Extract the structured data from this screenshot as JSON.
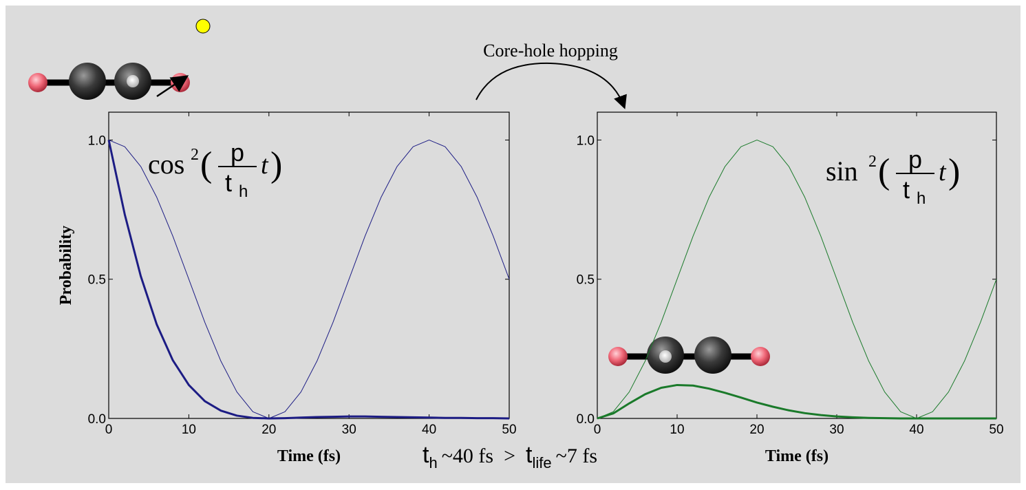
{
  "title": "Core-hole hopping",
  "annotations": {
    "t1": "t",
    "t1_sub": "h",
    "mid": "~40 fs  >  ",
    "t2": "t",
    "t2_sub": "life",
    "end": "~7 fs"
  },
  "chart_data": [
    {
      "type": "line",
      "ylabel": "Probability",
      "xlabel": "Time (fs)",
      "formula": {
        "func": "cos",
        "exp": "2",
        "open": "(",
        "num": "p",
        "den": "t",
        "den_sub": "h",
        "var": "t",
        "close": ")"
      },
      "x": [
        0,
        2,
        4,
        6,
        8,
        10,
        12,
        14,
        16,
        18,
        20,
        22,
        24,
        26,
        28,
        30,
        32,
        34,
        36,
        38,
        40,
        42,
        44,
        46,
        48,
        50
      ],
      "xlim": [
        0,
        50
      ],
      "xticks": [
        0,
        10,
        20,
        30,
        40,
        50
      ],
      "ylim": [
        0,
        1.1
      ],
      "yticks": [
        {
          "value": 0,
          "label": "0.0"
        },
        {
          "value": 0.5,
          "label": "0.5"
        },
        {
          "value": 1,
          "label": "1.0"
        }
      ],
      "series": [
        {
          "color": "#1c1c84",
          "linewidth": 1,
          "values": [
            1,
            0.976,
            0.905,
            0.794,
            0.655,
            0.5,
            0.345,
            0.206,
            0.095,
            0.024,
            0,
            0.024,
            0.095,
            0.206,
            0.345,
            0.5,
            0.655,
            0.794,
            0.905,
            0.976,
            1,
            0.976,
            0.905,
            0.794,
            0.655,
            0.5
          ]
        },
        {
          "color": "#1c1c84",
          "linewidth": 3,
          "values": [
            1,
            0.733,
            0.511,
            0.337,
            0.209,
            0.12,
            0.062,
            0.028,
            0.01,
            0.002,
            0,
            0.001,
            0.003,
            0.005,
            0.006,
            0.007,
            0.007,
            0.006,
            0.005,
            0.004,
            0.003,
            0.002,
            0.002,
            0.001,
            0.001,
            0
          ]
        }
      ]
    },
    {
      "type": "line",
      "xlabel": "Time (fs)",
      "formula": {
        "func": "sin",
        "exp": "2",
        "open": "(",
        "num": "p",
        "den": "t",
        "den_sub": "h",
        "var": "t",
        "close": ")"
      },
      "x": [
        0,
        2,
        4,
        6,
        8,
        10,
        12,
        14,
        16,
        18,
        20,
        22,
        24,
        26,
        28,
        30,
        32,
        34,
        36,
        38,
        40,
        42,
        44,
        46,
        48,
        50
      ],
      "xlim": [
        0,
        50
      ],
      "xticks": [
        0,
        10,
        20,
        30,
        40,
        50
      ],
      "ylim": [
        0,
        1.1
      ],
      "yticks": [
        {
          "value": 0,
          "label": "0.0"
        },
        {
          "value": 0.5,
          "label": "0.5"
        },
        {
          "value": 1,
          "label": "1.0"
        }
      ],
      "series": [
        {
          "color": "#1a7a2a",
          "linewidth": 1,
          "values": [
            0,
            0.024,
            0.095,
            0.206,
            0.345,
            0.5,
            0.655,
            0.794,
            0.905,
            0.976,
            1,
            0.976,
            0.905,
            0.794,
            0.655,
            0.5,
            0.345,
            0.206,
            0.095,
            0.024,
            0,
            0.024,
            0.095,
            0.206,
            0.345,
            0.5
          ]
        },
        {
          "color": "#1a7a2a",
          "linewidth": 3,
          "values": [
            0,
            0.018,
            0.054,
            0.087,
            0.11,
            0.12,
            0.118,
            0.107,
            0.092,
            0.075,
            0.057,
            0.042,
            0.029,
            0.019,
            0.012,
            0.007,
            0.004,
            0.002,
            0.001,
            0,
            0,
            0,
            0,
            0,
            0,
            0
          ]
        }
      ]
    }
  ]
}
